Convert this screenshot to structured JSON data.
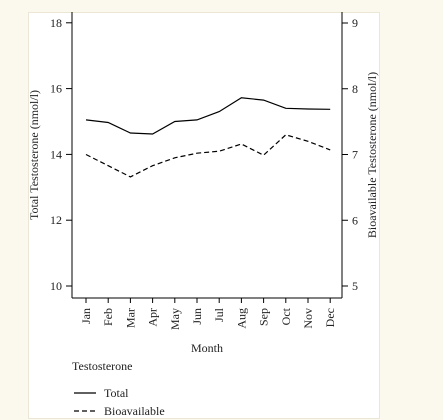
{
  "chart_data": {
    "type": "line",
    "categories": [
      "Jan",
      "Feb",
      "Mar",
      "Apr",
      "May",
      "Jun",
      "Jul",
      "Aug",
      "Sep",
      "Oct",
      "Nov",
      "Dec"
    ],
    "xlabel": "Month",
    "ylabel_left": "Total Testosterone (nmol/l)",
    "ylabel_right": "Bioavailable Testosterone (nmol/l)",
    "ylim_left": [
      9.6,
      18.2
    ],
    "ylim_right": [
      4.8,
      9.1
    ],
    "yticks_left": [
      10,
      12,
      14,
      16,
      18
    ],
    "yticks_right": [
      5,
      6,
      7,
      8,
      9
    ],
    "legend": {
      "title": "Testosterone",
      "placement": "bottom-left",
      "entries": [
        {
          "label": "Total",
          "style": "solid"
        },
        {
          "label": "Bioavailable",
          "style": "dashed"
        }
      ]
    },
    "series": [
      {
        "name": "Total",
        "axis": "left",
        "style": "solid",
        "color": "#000000",
        "values": [
          15.05,
          14.97,
          14.65,
          14.62,
          15.0,
          15.05,
          15.3,
          15.72,
          15.65,
          15.4,
          15.38,
          15.37
        ]
      },
      {
        "name": "Bioavailable",
        "axis": "right",
        "style": "dashed",
        "color": "#000000",
        "values": [
          7.0,
          6.83,
          6.66,
          6.83,
          6.95,
          7.02,
          7.05,
          7.16,
          6.99,
          7.3,
          7.2,
          7.07
        ]
      }
    ],
    "grid": false
  }
}
